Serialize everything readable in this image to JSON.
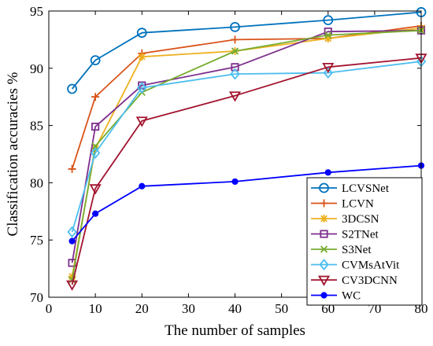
{
  "chart_data": {
    "type": "line",
    "xlabel": "The number of samples",
    "ylabel": "Classification accuracies %",
    "xlim": [
      0,
      80
    ],
    "ylim": [
      70,
      95
    ],
    "xticks": [
      0,
      10,
      20,
      30,
      40,
      50,
      60,
      70,
      80
    ],
    "yticks": [
      70,
      75,
      80,
      85,
      90,
      95
    ],
    "grid": false,
    "legend_position": "bottom-right",
    "x": [
      5,
      10,
      20,
      40,
      60,
      80
    ],
    "series": [
      {
        "name": "LCVSNet",
        "color": "#0072BD",
        "marker": "circle-open",
        "values": [
          88.2,
          90.7,
          93.1,
          93.6,
          94.2,
          94.9
        ]
      },
      {
        "name": "LCVN",
        "color": "#D95319",
        "marker": "plus",
        "values": [
          81.2,
          87.5,
          91.3,
          92.5,
          92.6,
          93.7
        ]
      },
      {
        "name": "3DCSN",
        "color": "#EDB120",
        "marker": "asterisk",
        "values": [
          71.8,
          83.0,
          91.0,
          91.5,
          92.6,
          93.5
        ]
      },
      {
        "name": "S2TNet",
        "color": "#7E2F8E",
        "marker": "square-open",
        "values": [
          73.0,
          84.9,
          88.5,
          90.1,
          93.2,
          93.3
        ]
      },
      {
        "name": "S3Net",
        "color": "#77AC30",
        "marker": "x",
        "values": [
          71.5,
          83.2,
          87.9,
          91.5,
          92.9,
          93.3
        ]
      },
      {
        "name": "CVMsAtVit",
        "color": "#4DBEEE",
        "marker": "diamond-open",
        "values": [
          75.7,
          82.6,
          88.3,
          89.5,
          89.6,
          90.6
        ]
      },
      {
        "name": "CV3DCNN",
        "color": "#A2142F",
        "marker": "triangle-down-open",
        "values": [
          71.1,
          79.5,
          85.4,
          87.6,
          90.1,
          90.9
        ]
      },
      {
        "name": "WC",
        "color": "#0000FF",
        "marker": "circle-filled",
        "values": [
          74.9,
          77.3,
          79.7,
          80.1,
          80.9,
          81.5
        ]
      }
    ]
  }
}
